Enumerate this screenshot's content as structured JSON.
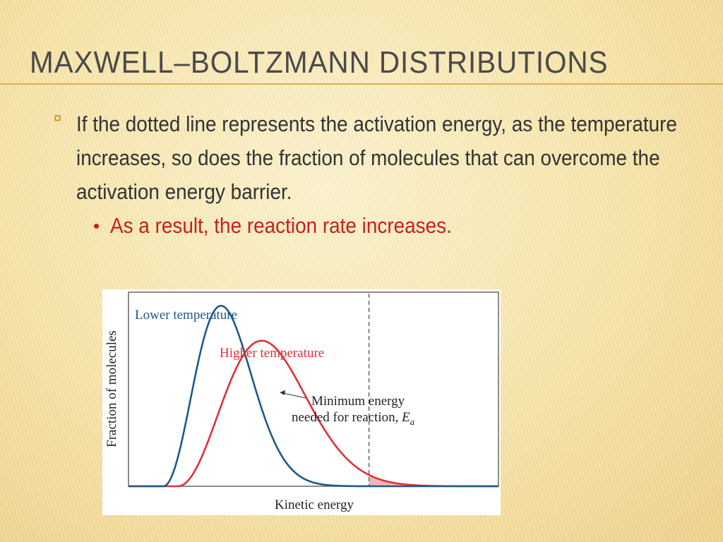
{
  "slide": {
    "title": "MAXWELL–BOLTZMANN DISTRIBUTIONS",
    "bullets": [
      {
        "marker": "¤",
        "text": "If the dotted line represents the activation energy, as the temperature increases, so does the fraction of molecules that can overcome the activation energy barrier."
      },
      {
        "marker": "•",
        "text": "As a result, the reaction rate increases."
      }
    ],
    "colors": {
      "title": "#4a4a4a",
      "body_text": "#333333",
      "sub_bullet": "#c8201a",
      "accent_marker": "#d08a1e"
    }
  },
  "figure": {
    "xlabel": "Kinetic energy",
    "ylabel": "Fraction of molecules",
    "curves": [
      {
        "name": "Lower temperature",
        "color": "#1f5a8a",
        "peak_x": 0.25,
        "peak_y": 0.93,
        "width": 0.11
      },
      {
        "name": "Higher temperature",
        "color": "#e03038",
        "peak_x": 0.36,
        "peak_y": 0.75,
        "width": 0.16
      }
    ],
    "threshold": {
      "x": 0.65,
      "annotation_line1": "Minimum energy",
      "annotation_line2": "needed for reaction, ",
      "annotation_symbol": "E",
      "annotation_subscript": "a",
      "line_style": "dashed"
    },
    "shading": {
      "high_color": "#f4b3b8",
      "low_color": "#8fa7d0"
    }
  }
}
